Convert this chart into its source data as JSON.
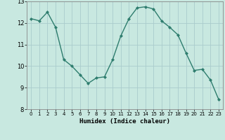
{
  "x": [
    0,
    1,
    2,
    3,
    4,
    5,
    6,
    7,
    8,
    9,
    10,
    11,
    12,
    13,
    14,
    15,
    16,
    17,
    18,
    19,
    20,
    21,
    22,
    23
  ],
  "y": [
    12.2,
    12.1,
    12.5,
    11.8,
    10.3,
    10.0,
    9.6,
    9.2,
    9.45,
    9.5,
    10.3,
    11.4,
    12.2,
    12.7,
    12.75,
    12.65,
    12.1,
    11.8,
    11.45,
    10.6,
    9.8,
    9.85,
    9.35,
    8.45
  ],
  "line_color": "#2e7d6e",
  "marker": "D",
  "marker_size": 2,
  "bg_color": "#c8e8e0",
  "grid_color": "#aacccc",
  "xlabel": "Humidex (Indice chaleur)",
  "ylim": [
    8,
    13
  ],
  "xlim": [
    -0.5,
    23.5
  ],
  "yticks": [
    8,
    9,
    10,
    11,
    12,
    13
  ],
  "xticks": [
    0,
    1,
    2,
    3,
    4,
    5,
    6,
    7,
    8,
    9,
    10,
    11,
    12,
    13,
    14,
    15,
    16,
    17,
    18,
    19,
    20,
    21,
    22,
    23
  ]
}
